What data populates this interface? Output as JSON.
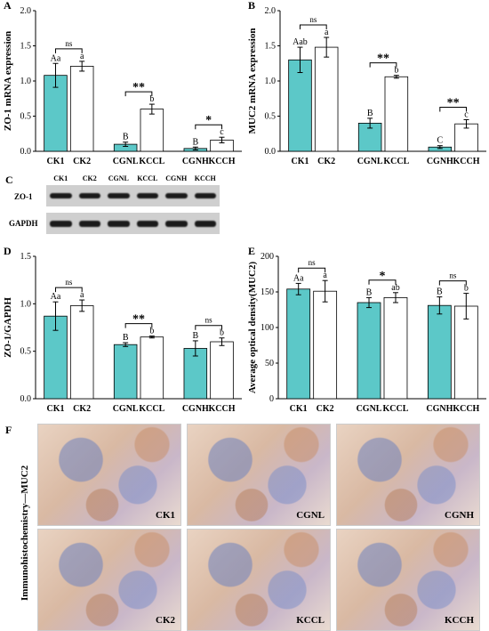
{
  "colors": {
    "teal": "#5cc8c8",
    "white": "#ffffff",
    "error": "#000000"
  },
  "chart_data": [
    {
      "panel": "A",
      "type": "bar",
      "ylabel": "ZO-1 mRNA expression",
      "ylim": [
        0,
        2.0
      ],
      "yticks": [
        "0.0",
        "0.5",
        "1.0",
        "1.5",
        "2.0"
      ],
      "categories": [
        "CK1",
        "CK2",
        "CGNL",
        "KCCL",
        "CGNH",
        "KCCH"
      ],
      "values": [
        1.08,
        1.21,
        0.1,
        0.6,
        0.04,
        0.16
      ],
      "errors": [
        0.17,
        0.07,
        0.03,
        0.07,
        0.02,
        0.04
      ],
      "letters": [
        "Aa",
        "a",
        "B",
        "b",
        "B",
        "c"
      ],
      "comparisons": [
        {
          "pair": [
            0,
            1
          ],
          "label": "ns"
        },
        {
          "pair": [
            2,
            3
          ],
          "label": "**"
        },
        {
          "pair": [
            4,
            5
          ],
          "label": "*"
        }
      ]
    },
    {
      "panel": "B",
      "type": "bar",
      "ylabel": "MUC2 mRNA expression",
      "ylim": [
        0,
        2.0
      ],
      "yticks": [
        "0.0",
        "0.5",
        "1.0",
        "1.5",
        "2.0"
      ],
      "categories": [
        "CK1",
        "CK2",
        "CGNL",
        "KCCL",
        "CGNH",
        "KCCH"
      ],
      "values": [
        1.3,
        1.48,
        0.4,
        1.06,
        0.06,
        0.39
      ],
      "errors": [
        0.18,
        0.14,
        0.07,
        0.02,
        0.02,
        0.06
      ],
      "letters": [
        "Aab",
        "a",
        "B",
        "b",
        "C",
        "c"
      ],
      "comparisons": [
        {
          "pair": [
            0,
            1
          ],
          "label": "ns"
        },
        {
          "pair": [
            2,
            3
          ],
          "label": "**"
        },
        {
          "pair": [
            4,
            5
          ],
          "label": "**"
        }
      ]
    },
    {
      "panel": "D",
      "type": "bar",
      "ylabel": "ZO-1/GAPDH",
      "ylim": [
        0,
        1.5
      ],
      "yticks": [
        "0.0",
        "0.5",
        "1.0",
        "1.5"
      ],
      "categories": [
        "CK1",
        "CK2",
        "CGNL",
        "KCCL",
        "CGNH",
        "KCCH"
      ],
      "values": [
        0.87,
        0.98,
        0.57,
        0.65,
        0.53,
        0.6
      ],
      "errors": [
        0.15,
        0.06,
        0.02,
        0.01,
        0.08,
        0.04
      ],
      "letters": [
        "Aa",
        "a",
        "B",
        "b",
        "B",
        "b"
      ],
      "comparisons": [
        {
          "pair": [
            0,
            1
          ],
          "label": "ns"
        },
        {
          "pair": [
            2,
            3
          ],
          "label": "**"
        },
        {
          "pair": [
            4,
            5
          ],
          "label": "ns"
        }
      ]
    },
    {
      "panel": "E",
      "type": "bar",
      "ylabel": "Average optical density(MUC2)",
      "ylim": [
        0,
        200
      ],
      "yticks": [
        "0",
        "50",
        "100",
        "150",
        "200"
      ],
      "categories": [
        "CK1",
        "CK2",
        "CGNL",
        "KCCL",
        "CGNH",
        "KCCH"
      ],
      "values": [
        154,
        151,
        135,
        142,
        131,
        130
      ],
      "errors": [
        8,
        15,
        7,
        7,
        12,
        18
      ],
      "letters": [
        "Aa",
        "a",
        "B",
        "ab",
        "B",
        "b"
      ],
      "comparisons": [
        {
          "pair": [
            0,
            1
          ],
          "label": "ns"
        },
        {
          "pair": [
            2,
            3
          ],
          "label": "*"
        },
        {
          "pair": [
            4,
            5
          ],
          "label": "ns"
        }
      ]
    }
  ],
  "blot": {
    "panel": "C",
    "lanes": [
      "CK1",
      "CK2",
      "CGNL",
      "KCCL",
      "CGNH",
      "KCCH"
    ],
    "rows": [
      "ZO-1",
      "GAPDH"
    ]
  },
  "micro": {
    "panel": "F",
    "side_label": "Immunohistochemistry—MUC2",
    "tiles": [
      "CK1",
      "CGNL",
      "CGNH",
      "CK2",
      "KCCL",
      "KCCH"
    ]
  }
}
